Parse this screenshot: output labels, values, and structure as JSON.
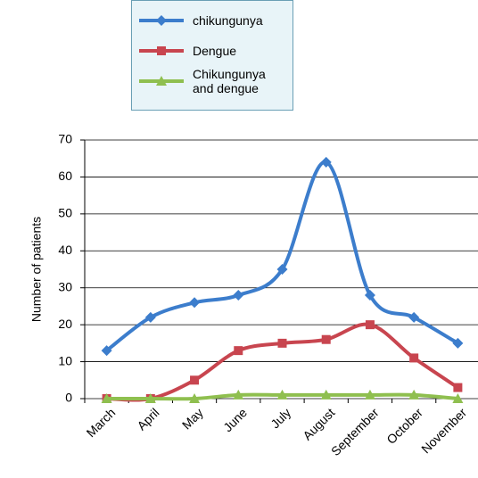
{
  "chart_data": {
    "type": "line",
    "categories": [
      "March",
      "April",
      "May",
      "June",
      "July",
      "August",
      "September",
      "October",
      "November"
    ],
    "series": [
      {
        "name": "chikungunya",
        "color": "#3c7dcc",
        "marker": "diamond",
        "values": [
          13,
          22,
          26,
          28,
          35,
          64,
          28,
          22,
          15
        ]
      },
      {
        "name": "Dengue",
        "color": "#c8454f",
        "marker": "square",
        "values": [
          0,
          0,
          5,
          13,
          15,
          16,
          20,
          11,
          3
        ]
      },
      {
        "name": "Chikungunya and dengue",
        "color": "#8fbf4f",
        "marker": "triangle",
        "values": [
          0,
          0,
          0,
          1,
          1,
          1,
          1,
          1,
          0
        ]
      }
    ],
    "y_label": "Number of patients",
    "ylim": [
      0,
      70
    ],
    "yticks": [
      0,
      10,
      20,
      30,
      40,
      50,
      60,
      70
    ],
    "grid": true,
    "legend": "top"
  }
}
